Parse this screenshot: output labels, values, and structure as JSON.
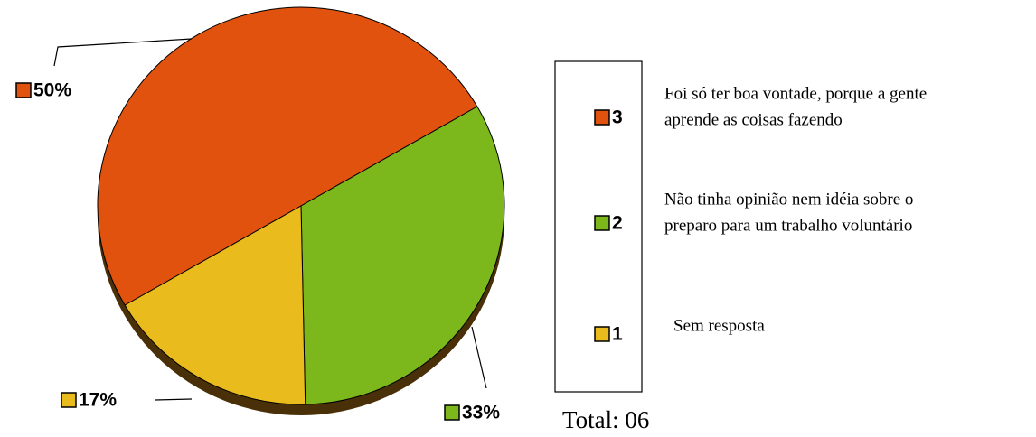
{
  "chart_data": {
    "type": "pie",
    "categories": [
      "3",
      "2",
      "1"
    ],
    "values": [
      50,
      33,
      17
    ],
    "value_labels": [
      "50%",
      "33%",
      "17%"
    ],
    "colors": [
      "#e0520e",
      "#7cb81c",
      "#eabb1c"
    ],
    "legend_descriptions": [
      [
        "Foi só ter boa vontade, porque a gente",
        "aprende as coisas fazendo"
      ],
      [
        "Não tinha opinião nem idéia sobre o",
        "preparo para um trabalho voluntário"
      ],
      [
        "Sem resposta"
      ]
    ],
    "total_label": "Total: 06"
  }
}
